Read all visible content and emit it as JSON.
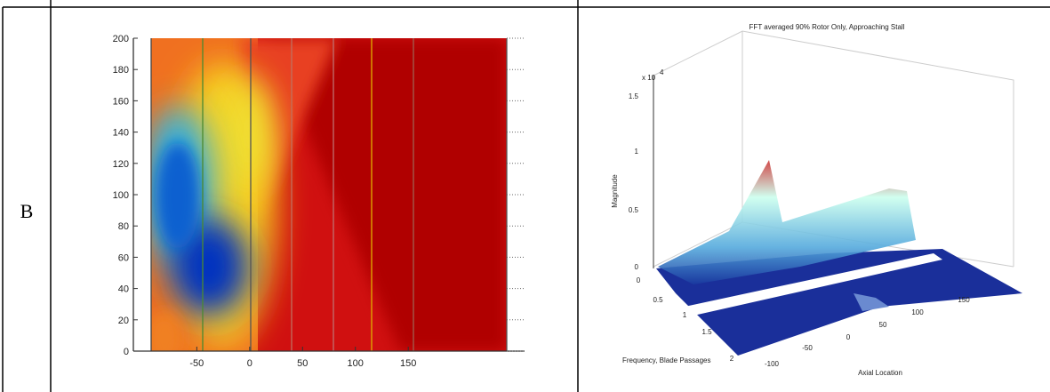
{
  "row_label": "B",
  "left_figure": {
    "ylim": [
      0,
      200
    ],
    "yticks": [
      0,
      20,
      40,
      60,
      80,
      100,
      120,
      140,
      160,
      180,
      200
    ],
    "xlim": [
      -110,
      260
    ],
    "xticks": [
      -50,
      0,
      50,
      100,
      150
    ]
  },
  "right_figure": {
    "title": "FFT averaged 90% Rotor Only, Approaching Stall",
    "scale_base": "x 10",
    "scale_exponent": "4",
    "z_label": "Magnitude",
    "zticks": [
      1.5,
      1,
      0.5,
      0
    ],
    "y_label": "Frequency, Blade Passages",
    "yticks": [
      0,
      0.5,
      1,
      1.5,
      2
    ],
    "x_label": "Axial Location",
    "xticks": [
      -100,
      -50,
      0,
      50,
      100,
      150
    ]
  }
}
